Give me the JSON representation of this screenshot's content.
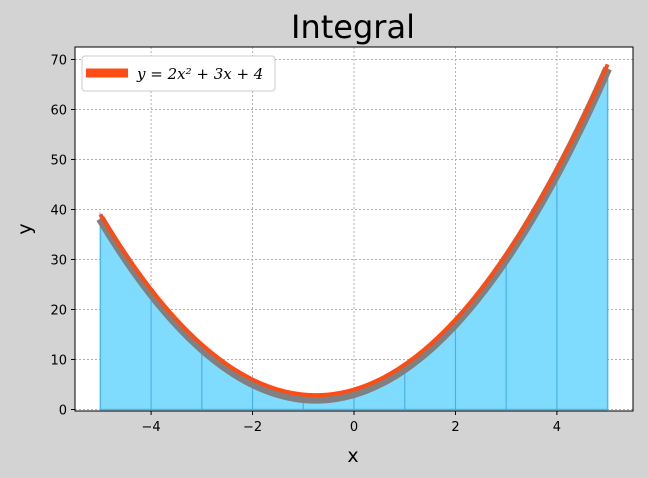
{
  "chart_data": {
    "type": "area",
    "title": "Integral",
    "xlabel": "x",
    "ylabel": "y",
    "xlim": [
      -5.5,
      5.5
    ],
    "ylim": [
      -0.3,
      72.5
    ],
    "xticks": [
      -4,
      -2,
      0,
      2,
      4
    ],
    "xtick_labels": [
      "−4",
      "−2",
      "0",
      "2",
      "4"
    ],
    "yticks": [
      0,
      10,
      20,
      30,
      40,
      50,
      60,
      70
    ],
    "ytick_labels": [
      "0",
      "10",
      "20",
      "30",
      "40",
      "50",
      "60",
      "70"
    ],
    "grid": true,
    "legend_position": "top-left",
    "series": [
      {
        "name": "y = 2x² + 3x + 4",
        "legend_label": "y = 2x² + 3x + 4",
        "kind": "line",
        "formula": {
          "a": 2,
          "b": 3,
          "c": 4
        },
        "x_range": [
          -5,
          5
        ],
        "color": "#ff4b14"
      }
    ],
    "shadow_curve_color": "#808080",
    "fill": {
      "x_range": [
        -5,
        5
      ],
      "color": "#80dcff",
      "edge_color": "#4db8f0",
      "strips_x": [
        -4,
        -3,
        -2,
        -1,
        0,
        1,
        2,
        3,
        4
      ],
      "strip_color": "#3fa6e6"
    }
  }
}
